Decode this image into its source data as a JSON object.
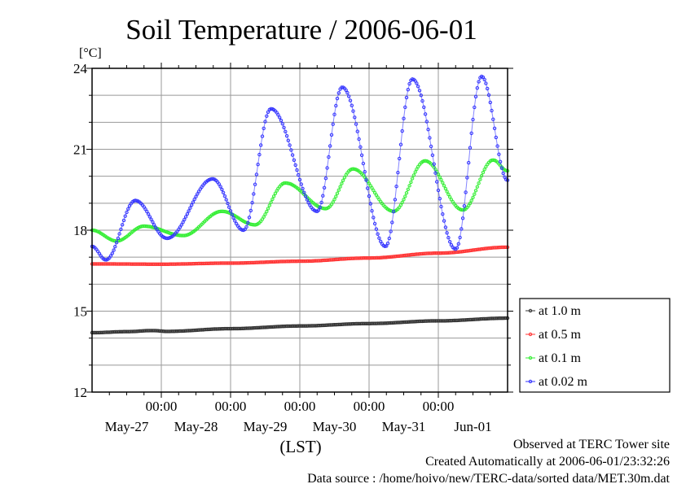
{
  "chart_data": {
    "type": "line",
    "title": "Soil Temperature / 2006-06-01",
    "ylabel": "[°C]",
    "xlabel": "(LST)",
    "ylim": [
      12,
      24
    ],
    "yticks": [
      "12",
      "15",
      "18",
      "21",
      "24"
    ],
    "x_unit": "hours since May-27 00:00",
    "xlim": [
      0,
      144
    ],
    "time_tick_label": "00:00",
    "date_labels": [
      "May-27",
      "May-28",
      "May-29",
      "May-30",
      "May-31",
      "Jun-01"
    ],
    "grid": true,
    "legend_position": "right",
    "series": [
      {
        "name": "at 1.0 m",
        "color": "#333333",
        "points": [
          [
            0,
            14.2
          ],
          [
            12,
            14.24
          ],
          [
            21,
            14.28
          ],
          [
            26,
            14.25
          ],
          [
            48,
            14.35
          ],
          [
            72,
            14.45
          ],
          [
            96,
            14.54
          ],
          [
            120,
            14.64
          ],
          [
            144,
            14.74
          ]
        ]
      },
      {
        "name": "at 0.5 m",
        "color": "#ff3333",
        "points": [
          [
            0,
            16.75
          ],
          [
            24,
            16.74
          ],
          [
            48,
            16.78
          ],
          [
            72,
            16.85
          ],
          [
            96,
            16.97
          ],
          [
            120,
            17.15
          ],
          [
            144,
            17.37
          ]
        ]
      },
      {
        "name": "at 0.1 m",
        "color": "#33ee33",
        "points": [
          [
            0,
            18.0
          ],
          [
            8.5,
            17.6
          ],
          [
            18,
            18.15
          ],
          [
            31.6,
            17.8
          ],
          [
            45,
            18.7
          ],
          [
            56.5,
            18.2
          ],
          [
            67,
            19.75
          ],
          [
            81,
            18.8
          ],
          [
            90.4,
            20.27
          ],
          [
            104.5,
            18.7
          ],
          [
            115.4,
            20.57
          ],
          [
            128.5,
            18.75
          ],
          [
            139,
            20.6
          ],
          [
            144,
            20.2
          ]
        ]
      },
      {
        "name": "at 0.02 m",
        "color": "#3333ff",
        "points": [
          [
            0,
            17.4
          ],
          [
            4.8,
            16.9
          ],
          [
            15,
            19.1
          ],
          [
            26,
            17.7
          ],
          [
            41.8,
            19.9
          ],
          [
            52.5,
            18.0
          ],
          [
            62,
            22.5
          ],
          [
            78,
            18.7
          ],
          [
            86.7,
            23.3
          ],
          [
            101.7,
            17.4
          ],
          [
            111,
            23.6
          ],
          [
            126,
            17.3
          ],
          [
            135,
            23.7
          ],
          [
            144,
            19.85
          ]
        ]
      }
    ]
  },
  "footer": {
    "observed": "Observed at TERC Tower site",
    "created": "Created Automatically at 2006-06-01/23:32:26",
    "source": "Data source : /home/hoivo/new/TERC-data/sorted  data/MET.30m.dat"
  }
}
